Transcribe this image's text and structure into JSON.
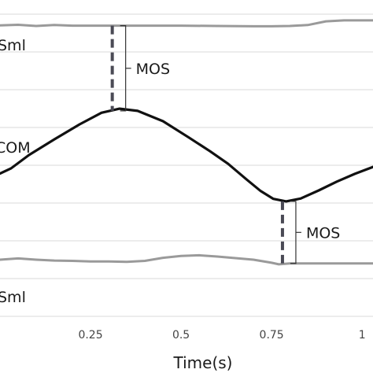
{
  "chart_data": {
    "type": "line",
    "xlabel": "Time(s)",
    "x_ticks": [
      0.25,
      0.5,
      0.75,
      1
    ],
    "xlim": [
      0,
      1.03
    ],
    "ylim": [
      0,
      1
    ],
    "grid": "horizontal",
    "series": [
      {
        "name": "Sml",
        "color": "#9a9a9a",
        "points": [
          [
            0.0,
            0.924
          ],
          [
            0.05,
            0.926
          ],
          [
            0.1,
            0.922
          ],
          [
            0.15,
            0.925
          ],
          [
            0.2,
            0.923
          ],
          [
            0.25,
            0.923
          ],
          [
            0.3,
            0.923
          ],
          [
            0.4,
            0.923
          ],
          [
            0.5,
            0.923
          ],
          [
            0.6,
            0.922
          ],
          [
            0.7,
            0.921
          ],
          [
            0.75,
            0.921
          ],
          [
            0.8,
            0.922
          ],
          [
            0.85,
            0.925
          ],
          [
            0.9,
            0.937
          ],
          [
            0.95,
            0.94
          ],
          [
            1.0,
            0.94
          ],
          [
            1.03,
            0.94
          ]
        ]
      },
      {
        "name": "COM",
        "color": "#111111",
        "points": [
          [
            0.0,
            0.451
          ],
          [
            0.03,
            0.467
          ],
          [
            0.08,
            0.51
          ],
          [
            0.15,
            0.56
          ],
          [
            0.22,
            0.608
          ],
          [
            0.28,
            0.645
          ],
          [
            0.33,
            0.658
          ],
          [
            0.38,
            0.651
          ],
          [
            0.45,
            0.618
          ],
          [
            0.52,
            0.567
          ],
          [
            0.58,
            0.522
          ],
          [
            0.63,
            0.482
          ],
          [
            0.68,
            0.433
          ],
          [
            0.72,
            0.395
          ],
          [
            0.755,
            0.37
          ],
          [
            0.79,
            0.362
          ],
          [
            0.83,
            0.371
          ],
          [
            0.88,
            0.397
          ],
          [
            0.93,
            0.425
          ],
          [
            0.98,
            0.45
          ],
          [
            1.03,
            0.472
          ]
        ]
      },
      {
        "name": "Sml",
        "color": "#9a9a9a",
        "points": [
          [
            0.0,
            0.176
          ],
          [
            0.05,
            0.18
          ],
          [
            0.1,
            0.176
          ],
          [
            0.15,
            0.173
          ],
          [
            0.2,
            0.172
          ],
          [
            0.25,
            0.17
          ],
          [
            0.3,
            0.17
          ],
          [
            0.35,
            0.169
          ],
          [
            0.4,
            0.172
          ],
          [
            0.45,
            0.182
          ],
          [
            0.5,
            0.188
          ],
          [
            0.55,
            0.19
          ],
          [
            0.6,
            0.186
          ],
          [
            0.65,
            0.181
          ],
          [
            0.7,
            0.176
          ],
          [
            0.75,
            0.166
          ],
          [
            0.77,
            0.161
          ],
          [
            0.8,
            0.164
          ],
          [
            0.85,
            0.164
          ],
          [
            0.9,
            0.164
          ],
          [
            1.0,
            0.164
          ],
          [
            1.03,
            0.164
          ]
        ]
      }
    ],
    "annotations": [
      {
        "text": "MOS",
        "x": 0.31,
        "y_top": 0.923,
        "y_bottom": 0.651
      },
      {
        "text": "MOS",
        "x": 0.78,
        "y_top": 0.362,
        "y_bottom": 0.164
      }
    ]
  }
}
